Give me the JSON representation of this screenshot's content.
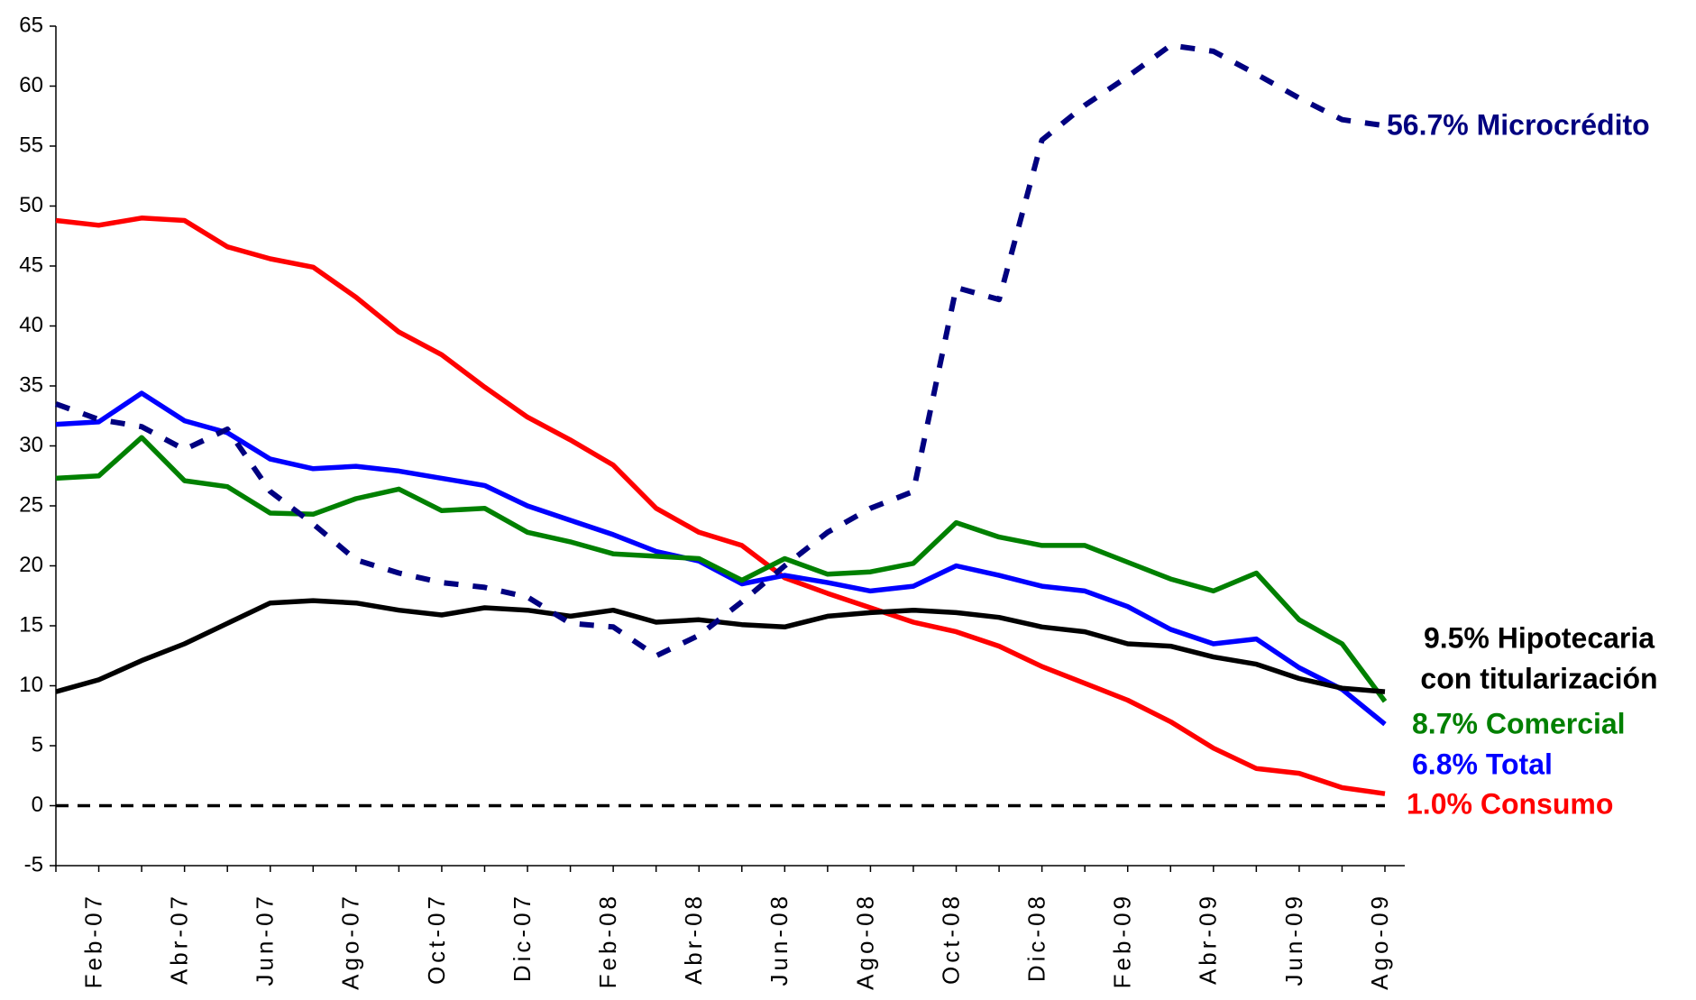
{
  "chart_data": {
    "type": "line",
    "categories": [
      null,
      "Feb-07",
      null,
      "Abr-07",
      null,
      "Jun-07",
      null,
      "Ago-07",
      null,
      "Oct-07",
      null,
      "Dic-07",
      null,
      "Feb-08",
      null,
      "Abr-08",
      null,
      "Jun-08",
      null,
      "Ago-08",
      null,
      "Oct-08",
      null,
      "Dic-08",
      null,
      "Feb-09",
      null,
      "Abr-09",
      null,
      "Jun-09",
      null,
      "Ago-09"
    ],
    "ylim": [
      -5,
      65
    ],
    "yticks": [
      -5,
      0,
      5,
      10,
      15,
      20,
      25,
      30,
      35,
      40,
      45,
      50,
      55,
      60,
      65
    ],
    "reference_line": 0,
    "series": [
      {
        "label": [
          "1.0% Consumo"
        ],
        "color": "#ff0000",
        "dashed": false,
        "values": [
          48.8,
          48.4,
          49.0,
          48.8,
          46.6,
          45.6,
          44.9,
          42.4,
          39.5,
          37.6,
          34.9,
          32.4,
          30.5,
          28.4,
          24.8,
          22.8,
          21.7,
          19.0,
          17.7,
          16.5,
          15.3,
          14.5,
          13.3,
          11.6,
          10.2,
          8.8,
          7.0,
          4.8,
          3.1,
          2.7,
          1.5,
          1.0
        ]
      },
      {
        "label": [
          "6.8% Total"
        ],
        "color": "#0000ff",
        "dashed": false,
        "values": [
          31.8,
          32.0,
          34.4,
          32.1,
          31.1,
          28.9,
          28.1,
          28.3,
          27.9,
          27.3,
          26.7,
          25.0,
          23.8,
          22.6,
          21.2,
          20.4,
          18.5,
          19.2,
          18.6,
          17.9,
          18.3,
          20.0,
          19.2,
          18.3,
          17.9,
          16.6,
          14.7,
          13.5,
          13.9,
          11.5,
          9.7,
          6.8
        ]
      },
      {
        "label": [
          "8.7% Comercial"
        ],
        "color": "#008000",
        "dashed": false,
        "values": [
          27.3,
          27.5,
          30.7,
          27.1,
          26.6,
          24.4,
          24.3,
          25.6,
          26.4,
          24.6,
          24.8,
          22.8,
          22.0,
          21.0,
          20.8,
          20.6,
          18.8,
          20.6,
          19.3,
          19.5,
          20.2,
          23.6,
          22.4,
          21.7,
          21.7,
          20.3,
          18.9,
          17.9,
          19.4,
          15.5,
          13.5,
          8.7
        ]
      },
      {
        "label": [
          "9.5% Hipotecaria",
          "con titularización"
        ],
        "color": "#000000",
        "dashed": false,
        "values": [
          9.5,
          10.5,
          12.1,
          13.5,
          15.2,
          16.9,
          17.1,
          16.9,
          16.3,
          15.9,
          16.5,
          16.3,
          15.8,
          16.3,
          15.3,
          15.5,
          15.1,
          14.9,
          15.8,
          16.1,
          16.3,
          16.1,
          15.7,
          14.9,
          14.5,
          13.5,
          13.3,
          12.4,
          11.8,
          10.6,
          9.8,
          9.5
        ]
      },
      {
        "label": [
          "56.7% Microcrédito"
        ],
        "color": "#000080",
        "dashed": true,
        "values": [
          33.5,
          32.2,
          31.6,
          29.7,
          31.4,
          26.2,
          23.5,
          20.5,
          19.4,
          18.6,
          18.2,
          17.4,
          15.2,
          14.9,
          12.5,
          14.2,
          17.0,
          20.0,
          22.8,
          24.8,
          26.2,
          43.2,
          42.2,
          55.5,
          58.4,
          60.8,
          63.4,
          62.9,
          61.0,
          59.0,
          57.2,
          56.7
        ]
      }
    ]
  }
}
